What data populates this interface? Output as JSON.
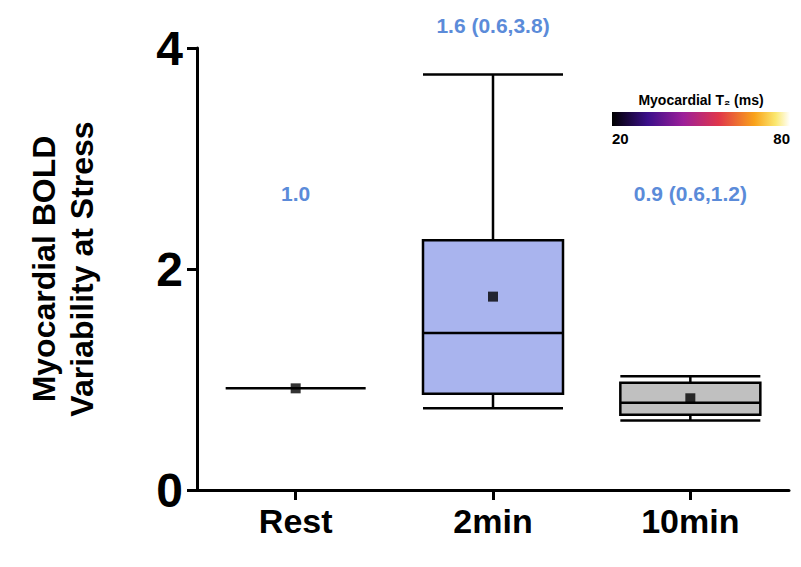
{
  "chart_data": {
    "type": "boxplot",
    "y_label": "Myocardial BOLD\nVariability at Stress",
    "categories": [
      "Rest",
      "2min",
      "10min"
    ],
    "boxes": [
      {
        "min": 0.92,
        "q1": 0.92,
        "median": 0.92,
        "q3": 0.92,
        "max": 0.92
      },
      {
        "min": 0.74,
        "q1": 0.87,
        "median": 1.42,
        "q3": 2.26,
        "max": 3.76
      },
      {
        "min": 0.63,
        "q1": 0.68,
        "median": 0.79,
        "q3": 0.97,
        "max": 1.03
      }
    ],
    "means": [
      0.92,
      1.75,
      0.83
    ],
    "colors": [
      "#ffffff",
      "#a9b4ee",
      "#c0c0c0"
    ],
    "annotations": [
      "1.0",
      "1.6 (0.6,3.8)",
      "0.9 (0.6,1.2)"
    ],
    "ylim": [
      0,
      4
    ],
    "yticks": [
      0,
      2,
      4
    ],
    "grid": false,
    "colorbar": {
      "title": "Myocardial T₂ (ms)",
      "range": [
        20,
        80
      ],
      "ticks": [
        20,
        80
      ]
    }
  }
}
